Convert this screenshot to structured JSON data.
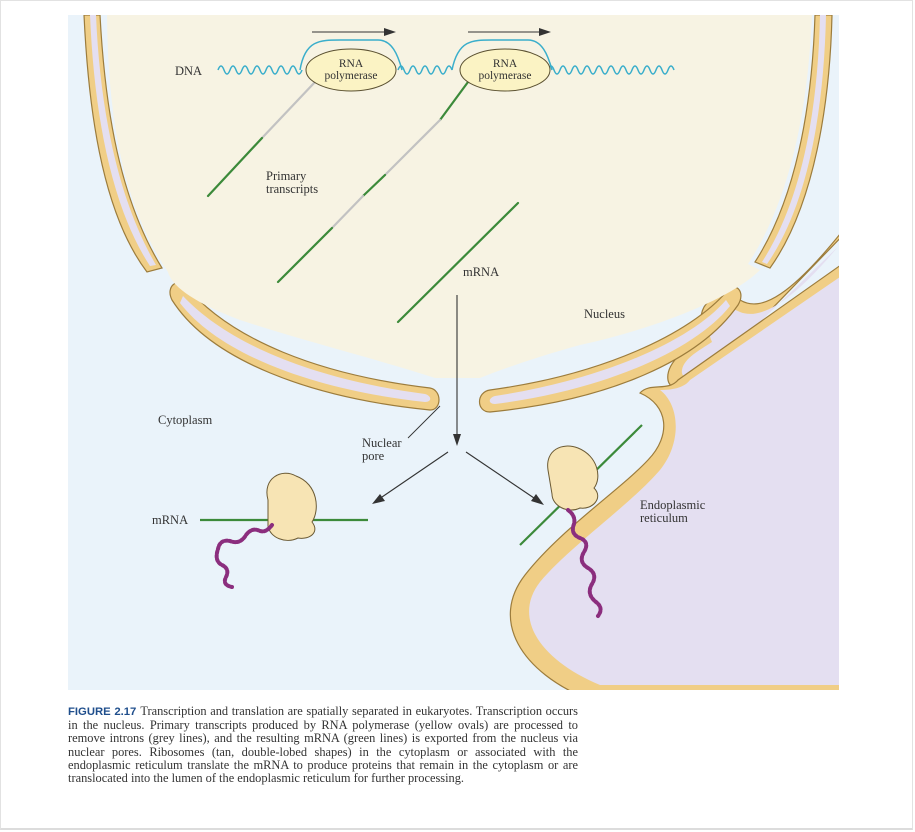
{
  "figure": {
    "labels": {
      "dna": "DNA",
      "rna_polymerase_1_line1": "RNA",
      "rna_polymerase_1_line2": "polymerase",
      "rna_polymerase_2_line1": "RNA",
      "rna_polymerase_2_line2": "polymerase",
      "primary_transcripts_line1": "Primary",
      "primary_transcripts_line2": "transcripts",
      "mrna_nucleus": "mRNA",
      "nucleus": "Nucleus",
      "cytoplasm": "Cytoplasm",
      "nuclear_pore_line1": "Nuclear",
      "nuclear_pore_line2": "pore",
      "mrna_cytoplasm": "mRNA",
      "er_line1": "Endoplasmic",
      "er_line2": "reticulum"
    },
    "colors": {
      "background_cytoplasm": "#eaf3fa",
      "nucleus": "#f7f3e3",
      "membrane": "#f0ce86",
      "membrane_outline": "#9c7c3c",
      "membrane_lumen": "#e4dff1",
      "er_lumen": "#e4dff1",
      "rna_polymerase": "#fbf3c4",
      "dna": "#3aaecb",
      "mrna": "#3c8a3a",
      "intron": "#c2c2c2",
      "ribosome": "#f7e4b4",
      "protein": "#8b2e7e",
      "caption_label": "#1f4e8c"
    }
  },
  "caption": {
    "label": "FIGURE 2.17",
    "text": "Transcription and translation are spatially separated in eukaryotes. Transcription occurs in the nucleus. Primary transcripts produced by RNA polymerase (yellow ovals) are processed to remove introns (grey lines), and the resulting mRNA (green lines) is exported from the nucleus via nuclear pores. Ribosomes (tan, double-lobed shapes) in the cytoplasm or associated with the endoplasmic reticulum translate the mRNA to produce proteins that remain in the cytoplasm or are translocated into the lumen of the endoplasmic reticulum for further processing."
  }
}
